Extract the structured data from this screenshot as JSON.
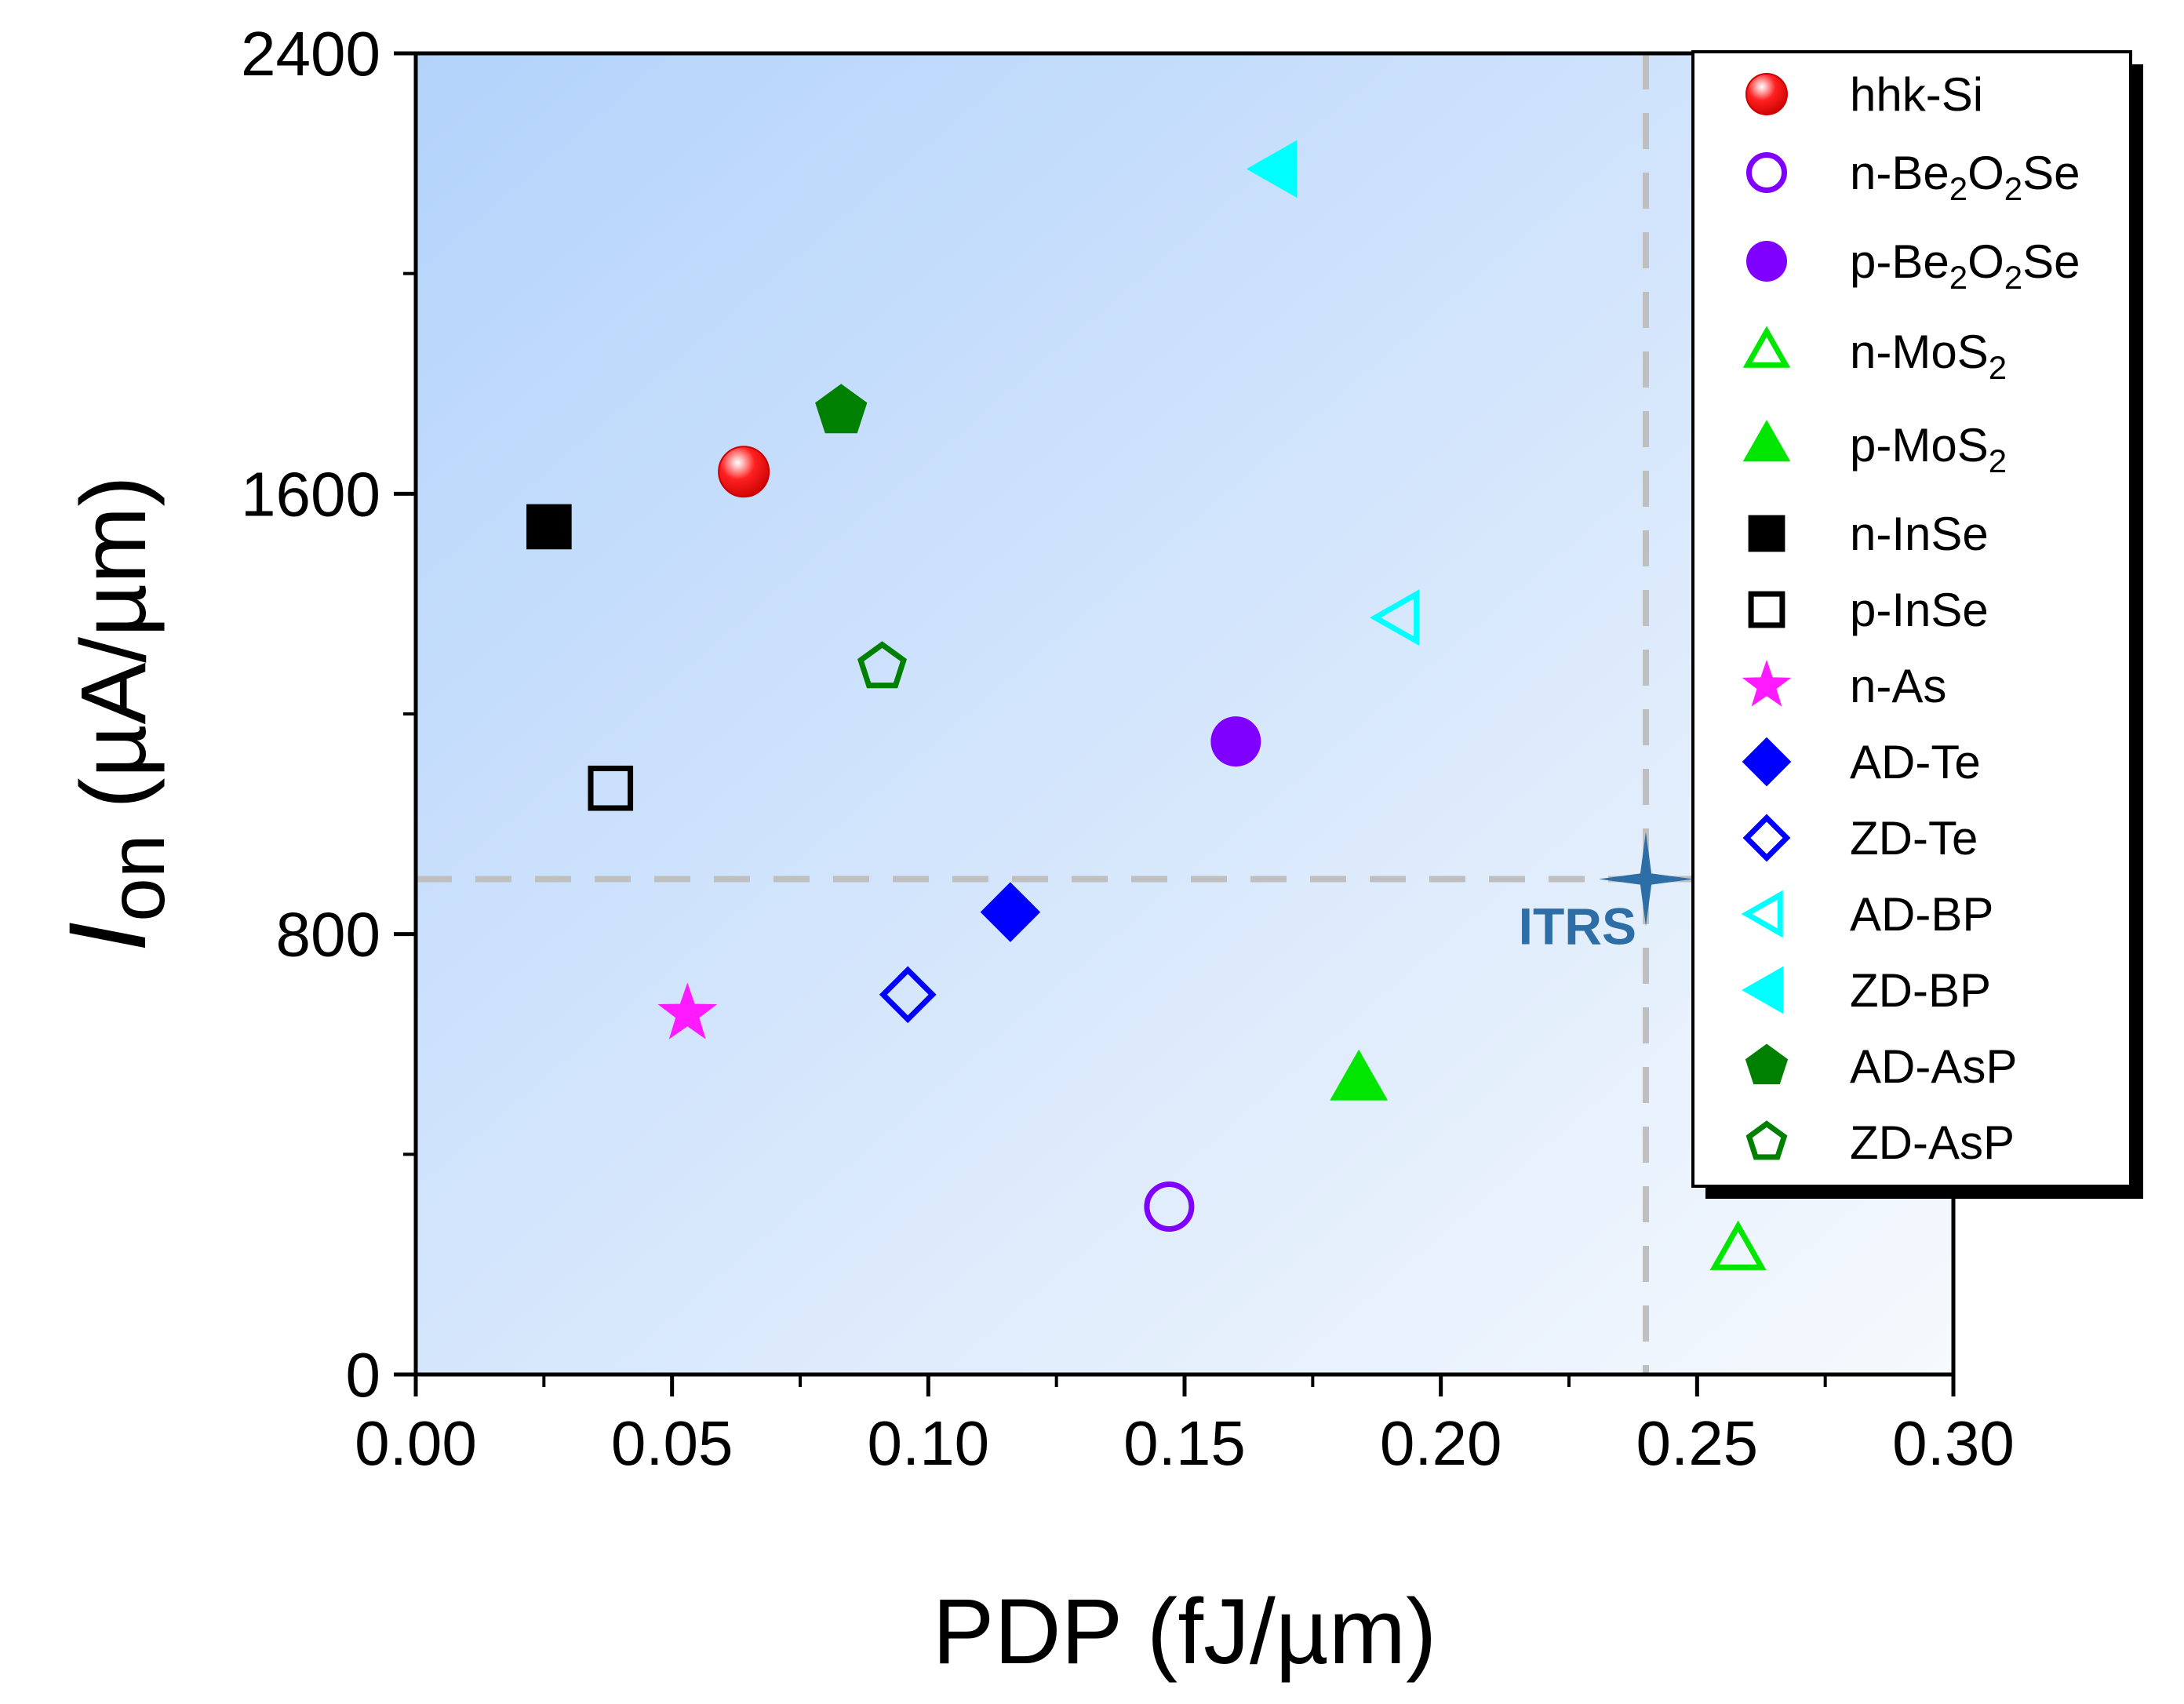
{
  "chart_data": {
    "type": "scatter",
    "xlabel": "PDP (fJ/µm)",
    "ylabel": {
      "italic_part": "I",
      "sub_part": "on",
      "rest": " (µA/µm)"
    },
    "xlim": [
      0,
      0.3
    ],
    "ylim": [
      0,
      2400
    ],
    "xticks": [
      0.0,
      0.05,
      0.1,
      0.15,
      0.2,
      0.25,
      0.3
    ],
    "xtick_labels": [
      "0.00",
      "0.05",
      "0.10",
      "0.15",
      "0.20",
      "0.25",
      "0.30"
    ],
    "xminor": [
      0.025,
      0.075,
      0.125,
      0.175,
      0.225,
      0.275
    ],
    "yticks": [
      0,
      800,
      1600,
      2400
    ],
    "ytick_labels": [
      "0",
      "800",
      "1600",
      "2400"
    ],
    "yminor": [
      400,
      1200,
      2000
    ],
    "legend_position": "top-right",
    "grid": false,
    "background_gradient": [
      "#b3d3fb",
      "#f6f9fd"
    ],
    "reference_lines": {
      "x": 0.24,
      "y": 900,
      "color": "#bfbfbf"
    },
    "annotation": {
      "label": "ITRS",
      "x": 0.24,
      "y": 900,
      "color": "#2e6ea6"
    },
    "series": [
      {
        "name": [
          {
            "t": "hhk-Si"
          }
        ],
        "marker": "sphere",
        "color": "#ff1a1a",
        "filled": true,
        "x": 0.064,
        "y": 1640
      },
      {
        "name": [
          {
            "t": "n-Be"
          },
          {
            "t": "2",
            "sub": true
          },
          {
            "t": "O"
          },
          {
            "t": "2",
            "sub": true
          },
          {
            "t": "Se"
          }
        ],
        "marker": "circle",
        "color": "#8000ff",
        "filled": false,
        "x": 0.147,
        "y": 305
      },
      {
        "name": [
          {
            "t": "p-Be"
          },
          {
            "t": "2",
            "sub": true
          },
          {
            "t": "O"
          },
          {
            "t": "2",
            "sub": true
          },
          {
            "t": "Se"
          }
        ],
        "marker": "circle",
        "color": "#8000ff",
        "filled": true,
        "x": 0.16,
        "y": 1150
      },
      {
        "name": [
          {
            "t": "n-MoS"
          },
          {
            "t": "2",
            "sub": true
          }
        ],
        "marker": "triangle-up",
        "color": "#00e600",
        "filled": false,
        "x": 0.258,
        "y": 225
      },
      {
        "name": [
          {
            "t": "p-MoS"
          },
          {
            "t": "2",
            "sub": true
          }
        ],
        "marker": "triangle-up",
        "color": "#00e600",
        "filled": true,
        "x": 0.184,
        "y": 535
      },
      {
        "name": [
          {
            "t": "n-InSe"
          }
        ],
        "marker": "square",
        "color": "#000000",
        "filled": true,
        "x": 0.026,
        "y": 1540
      },
      {
        "name": [
          {
            "t": "p-InSe"
          }
        ],
        "marker": "square",
        "color": "#000000",
        "filled": false,
        "x": 0.038,
        "y": 1065
      },
      {
        "name": [
          {
            "t": "n-As"
          }
        ],
        "marker": "star",
        "color": "#ff1aff",
        "filled": true,
        "x": 0.053,
        "y": 655
      },
      {
        "name": [
          {
            "t": "AD-Te"
          }
        ],
        "marker": "diamond",
        "color": "#0000ff",
        "filled": true,
        "x": 0.116,
        "y": 840
      },
      {
        "name": [
          {
            "t": "ZD-Te"
          }
        ],
        "marker": "diamond",
        "color": "#0000ff",
        "filled": false,
        "x": 0.096,
        "y": 690
      },
      {
        "name": [
          {
            "t": "AD-BP"
          }
        ],
        "marker": "triangle-left",
        "color": "#00ffff",
        "filled": false,
        "x": 0.192,
        "y": 1375
      },
      {
        "name": [
          {
            "t": "ZD-BP"
          }
        ],
        "marker": "triangle-left",
        "color": "#00ffff",
        "filled": true,
        "x": 0.168,
        "y": 2190
      },
      {
        "name": [
          {
            "t": "AD-AsP"
          }
        ],
        "marker": "pentagon",
        "color": "#008000",
        "filled": true,
        "x": 0.083,
        "y": 1750
      },
      {
        "name": [
          {
            "t": "ZD-AsP"
          }
        ],
        "marker": "pentagon",
        "color": "#008000",
        "filled": false,
        "x": 0.091,
        "y": 1285
      }
    ]
  }
}
